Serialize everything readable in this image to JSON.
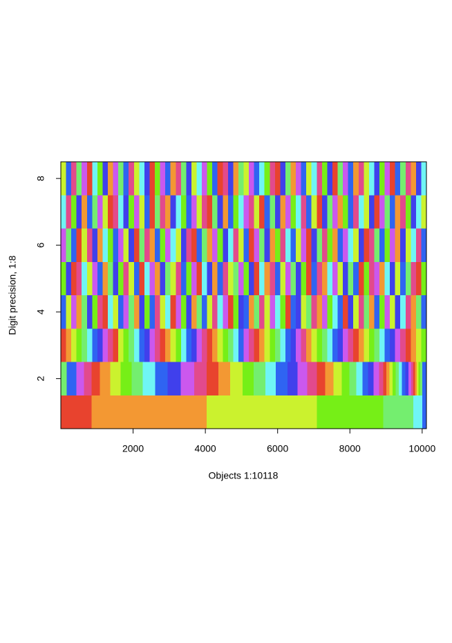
{
  "chart_data": {
    "type": "heatmap",
    "xlabel": "Objects 1:10118",
    "ylabel": "Digit precision, 1:8",
    "xlim": [
      0,
      10118
    ],
    "ylim": [
      0.5,
      8.5
    ],
    "xticks": [
      2000,
      4000,
      6000,
      8000,
      10000
    ],
    "yticks": [
      2,
      4,
      6,
      8
    ],
    "palette": [
      "#e8432e",
      "#f39833",
      "#cbf22e",
      "#76ef17",
      "#74ee6f",
      "#6ff5f5",
      "#2f64f2",
      "#4040ec",
      "#cb58ee",
      "#e24a8c"
    ],
    "rows": [
      {
        "y": 1,
        "breaks": [
          0,
          849,
          4033,
          7084,
          8926,
          9751,
          10000,
          10118
        ],
        "digits": [
          0,
          1,
          2,
          3,
          4,
          5,
          6
        ]
      },
      {
        "y": 2,
        "breaks": [
          0,
          158,
          427,
          638,
          849,
          1079,
          1367,
          1654,
          1961,
          2264,
          2609,
          2959,
          3323,
          3688,
          4033,
          4359,
          4685,
          5031,
          5338,
          5664,
          5952,
          6278,
          6547,
          6815,
          7084,
          7314,
          7545,
          7775,
          7986,
          8178,
          8350,
          8504,
          8657,
          8811,
          8926,
          9010,
          9095,
          9180,
          9265,
          9350,
          9440,
          9530,
          9620,
          9700,
          9751,
          9800,
          9850,
          9900,
          9950,
          10000,
          10118
        ],
        "digits": [
          4,
          6,
          8,
          9,
          0,
          1,
          2,
          3,
          4,
          5,
          6,
          7,
          8,
          9,
          0,
          1,
          2,
          3,
          4,
          5,
          6,
          7,
          8,
          9,
          0,
          1,
          2,
          3,
          4,
          5,
          6,
          7,
          8,
          9,
          0,
          1,
          2,
          3,
          4,
          5,
          6,
          7,
          8,
          9,
          0,
          1,
          2,
          3,
          4,
          6
        ]
      },
      {
        "y": 3,
        "digits": [
          0,
          1,
          2,
          3,
          4,
          5,
          6,
          7,
          8,
          9,
          0,
          2,
          3,
          4,
          5,
          6,
          7,
          8,
          9,
          0,
          1,
          2,
          3,
          5,
          6,
          7,
          8,
          9,
          0,
          1,
          2,
          3,
          4,
          5,
          6,
          8,
          9,
          0,
          1,
          2,
          3,
          4,
          5,
          6,
          7,
          8,
          9,
          1,
          2,
          3,
          4,
          5,
          6,
          7,
          8,
          9,
          0,
          1,
          2,
          3,
          4,
          5,
          6,
          7,
          8,
          9,
          0,
          1,
          2,
          3
        ]
      },
      {
        "y": 4,
        "digits": [
          6,
          2,
          8,
          1,
          4,
          7,
          3,
          9,
          0,
          5,
          2,
          6,
          8,
          4,
          1,
          7,
          3,
          6,
          9,
          2,
          5,
          0,
          8,
          3,
          7,
          1,
          4,
          6,
          2,
          9,
          5,
          8,
          0,
          3,
          7,
          6,
          1,
          4,
          9,
          2,
          8,
          5,
          3,
          0,
          6,
          7,
          2,
          4,
          9,
          1,
          8,
          3,
          5,
          6,
          0,
          7,
          2,
          9,
          4,
          1,
          6,
          3,
          8,
          2,
          7,
          5,
          9,
          1,
          4,
          6
        ]
      },
      {
        "y": 5,
        "digits": [
          3,
          7,
          0,
          9,
          5,
          2,
          8,
          6,
          1,
          4,
          7,
          3,
          9,
          2,
          6,
          0,
          5,
          8,
          1,
          7,
          4,
          2,
          9,
          6,
          3,
          8,
          0,
          5,
          7,
          1,
          6,
          9,
          2,
          4,
          8,
          3,
          7,
          0,
          5,
          1,
          9,
          6,
          2,
          8,
          4,
          7,
          3,
          0,
          6,
          9,
          1,
          5,
          8,
          2,
          7,
          4,
          6,
          0,
          3,
          9,
          8,
          1,
          5,
          7,
          2,
          6,
          4,
          9,
          0,
          3
        ]
      },
      {
        "y": 6,
        "digits": [
          8,
          4,
          6,
          0,
          2,
          9,
          7,
          1,
          5,
          3,
          6,
          8,
          2,
          7,
          0,
          4,
          9,
          1,
          6,
          3,
          8,
          5,
          2,
          7,
          9,
          0,
          6,
          4,
          1,
          8,
          3,
          7,
          5,
          9,
          2,
          6,
          0,
          8,
          4,
          7,
          1,
          3,
          9,
          5,
          6,
          2,
          8,
          0,
          7,
          4,
          9,
          3,
          1,
          6,
          8,
          5,
          2,
          7,
          0,
          9,
          4,
          6,
          3,
          8,
          1,
          7,
          2,
          5,
          9,
          6
        ]
      },
      {
        "y": 7,
        "digits": [
          5,
          9,
          3,
          7,
          1,
          6,
          4,
          8,
          2,
          0,
          9,
          5,
          7,
          3,
          8,
          2,
          6,
          0,
          4,
          9,
          1,
          7,
          5,
          3,
          6,
          8,
          2,
          9,
          0,
          4,
          7,
          1,
          6,
          3,
          5,
          8,
          9,
          2,
          0,
          6,
          4,
          7,
          1,
          8,
          3,
          5,
          9,
          6,
          2,
          0,
          7,
          4,
          8,
          1,
          3,
          6,
          9,
          5,
          2,
          7,
          0,
          8,
          4,
          6,
          1,
          9,
          3,
          7,
          5,
          2
        ]
      },
      {
        "y": 8,
        "digits": [
          2,
          6,
          9,
          4,
          8,
          0,
          5,
          3,
          7,
          1,
          8,
          4,
          6,
          9,
          2,
          5,
          7,
          0,
          3,
          8,
          6,
          1,
          9,
          4,
          7,
          2,
          5,
          8,
          3,
          6,
          0,
          9,
          7,
          1,
          4,
          2,
          8,
          6,
          5,
          3,
          9,
          0,
          7,
          4,
          1,
          8,
          6,
          2,
          5,
          9,
          3,
          7,
          0,
          4,
          8,
          6,
          1,
          9,
          2,
          5,
          7,
          3,
          8,
          0,
          6,
          4,
          9,
          1,
          7,
          5
        ]
      }
    ]
  }
}
